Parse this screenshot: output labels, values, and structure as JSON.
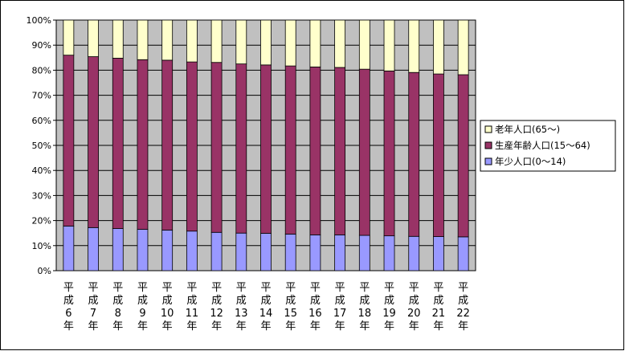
{
  "chart_data": {
    "type": "bar",
    "stacked": "percent",
    "categories": [
      [
        "平",
        "成",
        "6",
        "年"
      ],
      [
        "平",
        "成",
        "7",
        "年"
      ],
      [
        "平",
        "成",
        "8",
        "年"
      ],
      [
        "平",
        "成",
        "9",
        "年"
      ],
      [
        "平",
        "成",
        "10",
        "年"
      ],
      [
        "平",
        "成",
        "11",
        "年"
      ],
      [
        "平",
        "成",
        "12",
        "年"
      ],
      [
        "平",
        "成",
        "13",
        "年"
      ],
      [
        "平",
        "成",
        "14",
        "年"
      ],
      [
        "平",
        "成",
        "15",
        "年"
      ],
      [
        "平",
        "成",
        "16",
        "年"
      ],
      [
        "平",
        "成",
        "17",
        "年"
      ],
      [
        "平",
        "成",
        "18",
        "年"
      ],
      [
        "平",
        "成",
        "19",
        "年"
      ],
      [
        "平",
        "成",
        "20",
        "年"
      ],
      [
        "平",
        "成",
        "21",
        "年"
      ],
      [
        "平",
        "成",
        "22",
        "年"
      ]
    ],
    "series": [
      {
        "name": "年少人口(0～14)",
        "color": "#9999ff",
        "values": [
          17.8,
          17.2,
          16.8,
          16.5,
          16.2,
          15.8,
          15.3,
          15.0,
          14.9,
          14.6,
          14.3,
          14.3,
          14.1,
          13.9,
          13.7,
          13.6,
          13.5
        ]
      },
      {
        "name": "生産年齢人口(15～64)",
        "color": "#993366",
        "values": [
          68.2,
          68.2,
          68.0,
          67.7,
          67.8,
          67.5,
          67.8,
          67.5,
          67.2,
          67.1,
          67.0,
          66.8,
          66.3,
          65.8,
          65.4,
          64.9,
          64.7
        ]
      },
      {
        "name": "老年人口(65～)",
        "color": "#ffffcc",
        "values": [
          14.0,
          14.6,
          15.2,
          15.8,
          16.0,
          16.7,
          16.9,
          17.5,
          17.9,
          18.3,
          18.7,
          18.9,
          19.6,
          20.3,
          20.9,
          21.5,
          21.8
        ]
      }
    ],
    "legend_order": [
      2,
      1,
      0
    ],
    "y_ticks": [
      "0%",
      "10%",
      "20%",
      "30%",
      "40%",
      "50%",
      "60%",
      "70%",
      "80%",
      "90%",
      "100%"
    ],
    "ylim": [
      0,
      100
    ],
    "grid": true,
    "plot_background": "#c0c0c0",
    "legend_position": "right",
    "title": "",
    "xlabel": "",
    "ylabel": ""
  }
}
